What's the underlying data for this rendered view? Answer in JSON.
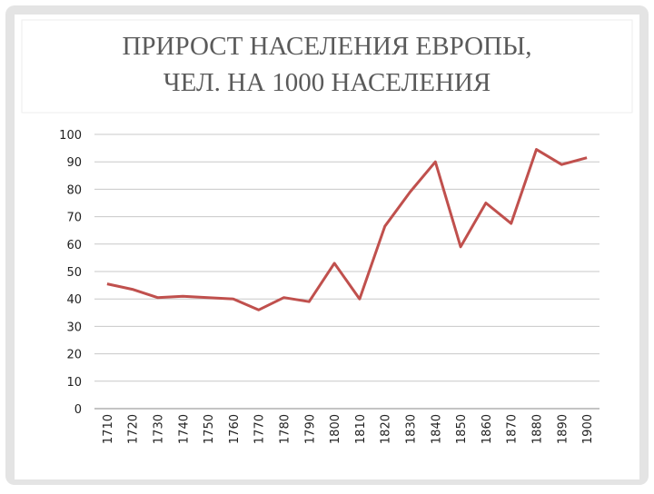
{
  "chart_data": {
    "type": "line",
    "title": [
      "ПРИРОСТ НАСЕЛЕНИЯ ЕВРОПЫ,",
      "ЧЕЛ. НА 1000 НАСЕЛЕНИЯ"
    ],
    "categories": [
      "1710",
      "1720",
      "1730",
      "1740",
      "1750",
      "1760",
      "1770",
      "1780",
      "1790",
      "1800",
      "1810",
      "1820",
      "1830",
      "1840",
      "1850",
      "1860",
      "1870",
      "1880",
      "1890",
      "1900"
    ],
    "series": [
      {
        "color": "#c0504d",
        "values": [
          45.5,
          43.5,
          40.5,
          41,
          40.5,
          40,
          36,
          40.5,
          39,
          53,
          40,
          66.5,
          79,
          90,
          59,
          75,
          67.5,
          94.5,
          89,
          91.5
        ]
      }
    ],
    "ylim": [
      0,
      100
    ],
    "yticks": [
      0,
      10,
      20,
      30,
      40,
      50,
      60,
      70,
      80,
      90,
      100
    ],
    "grid": true
  }
}
